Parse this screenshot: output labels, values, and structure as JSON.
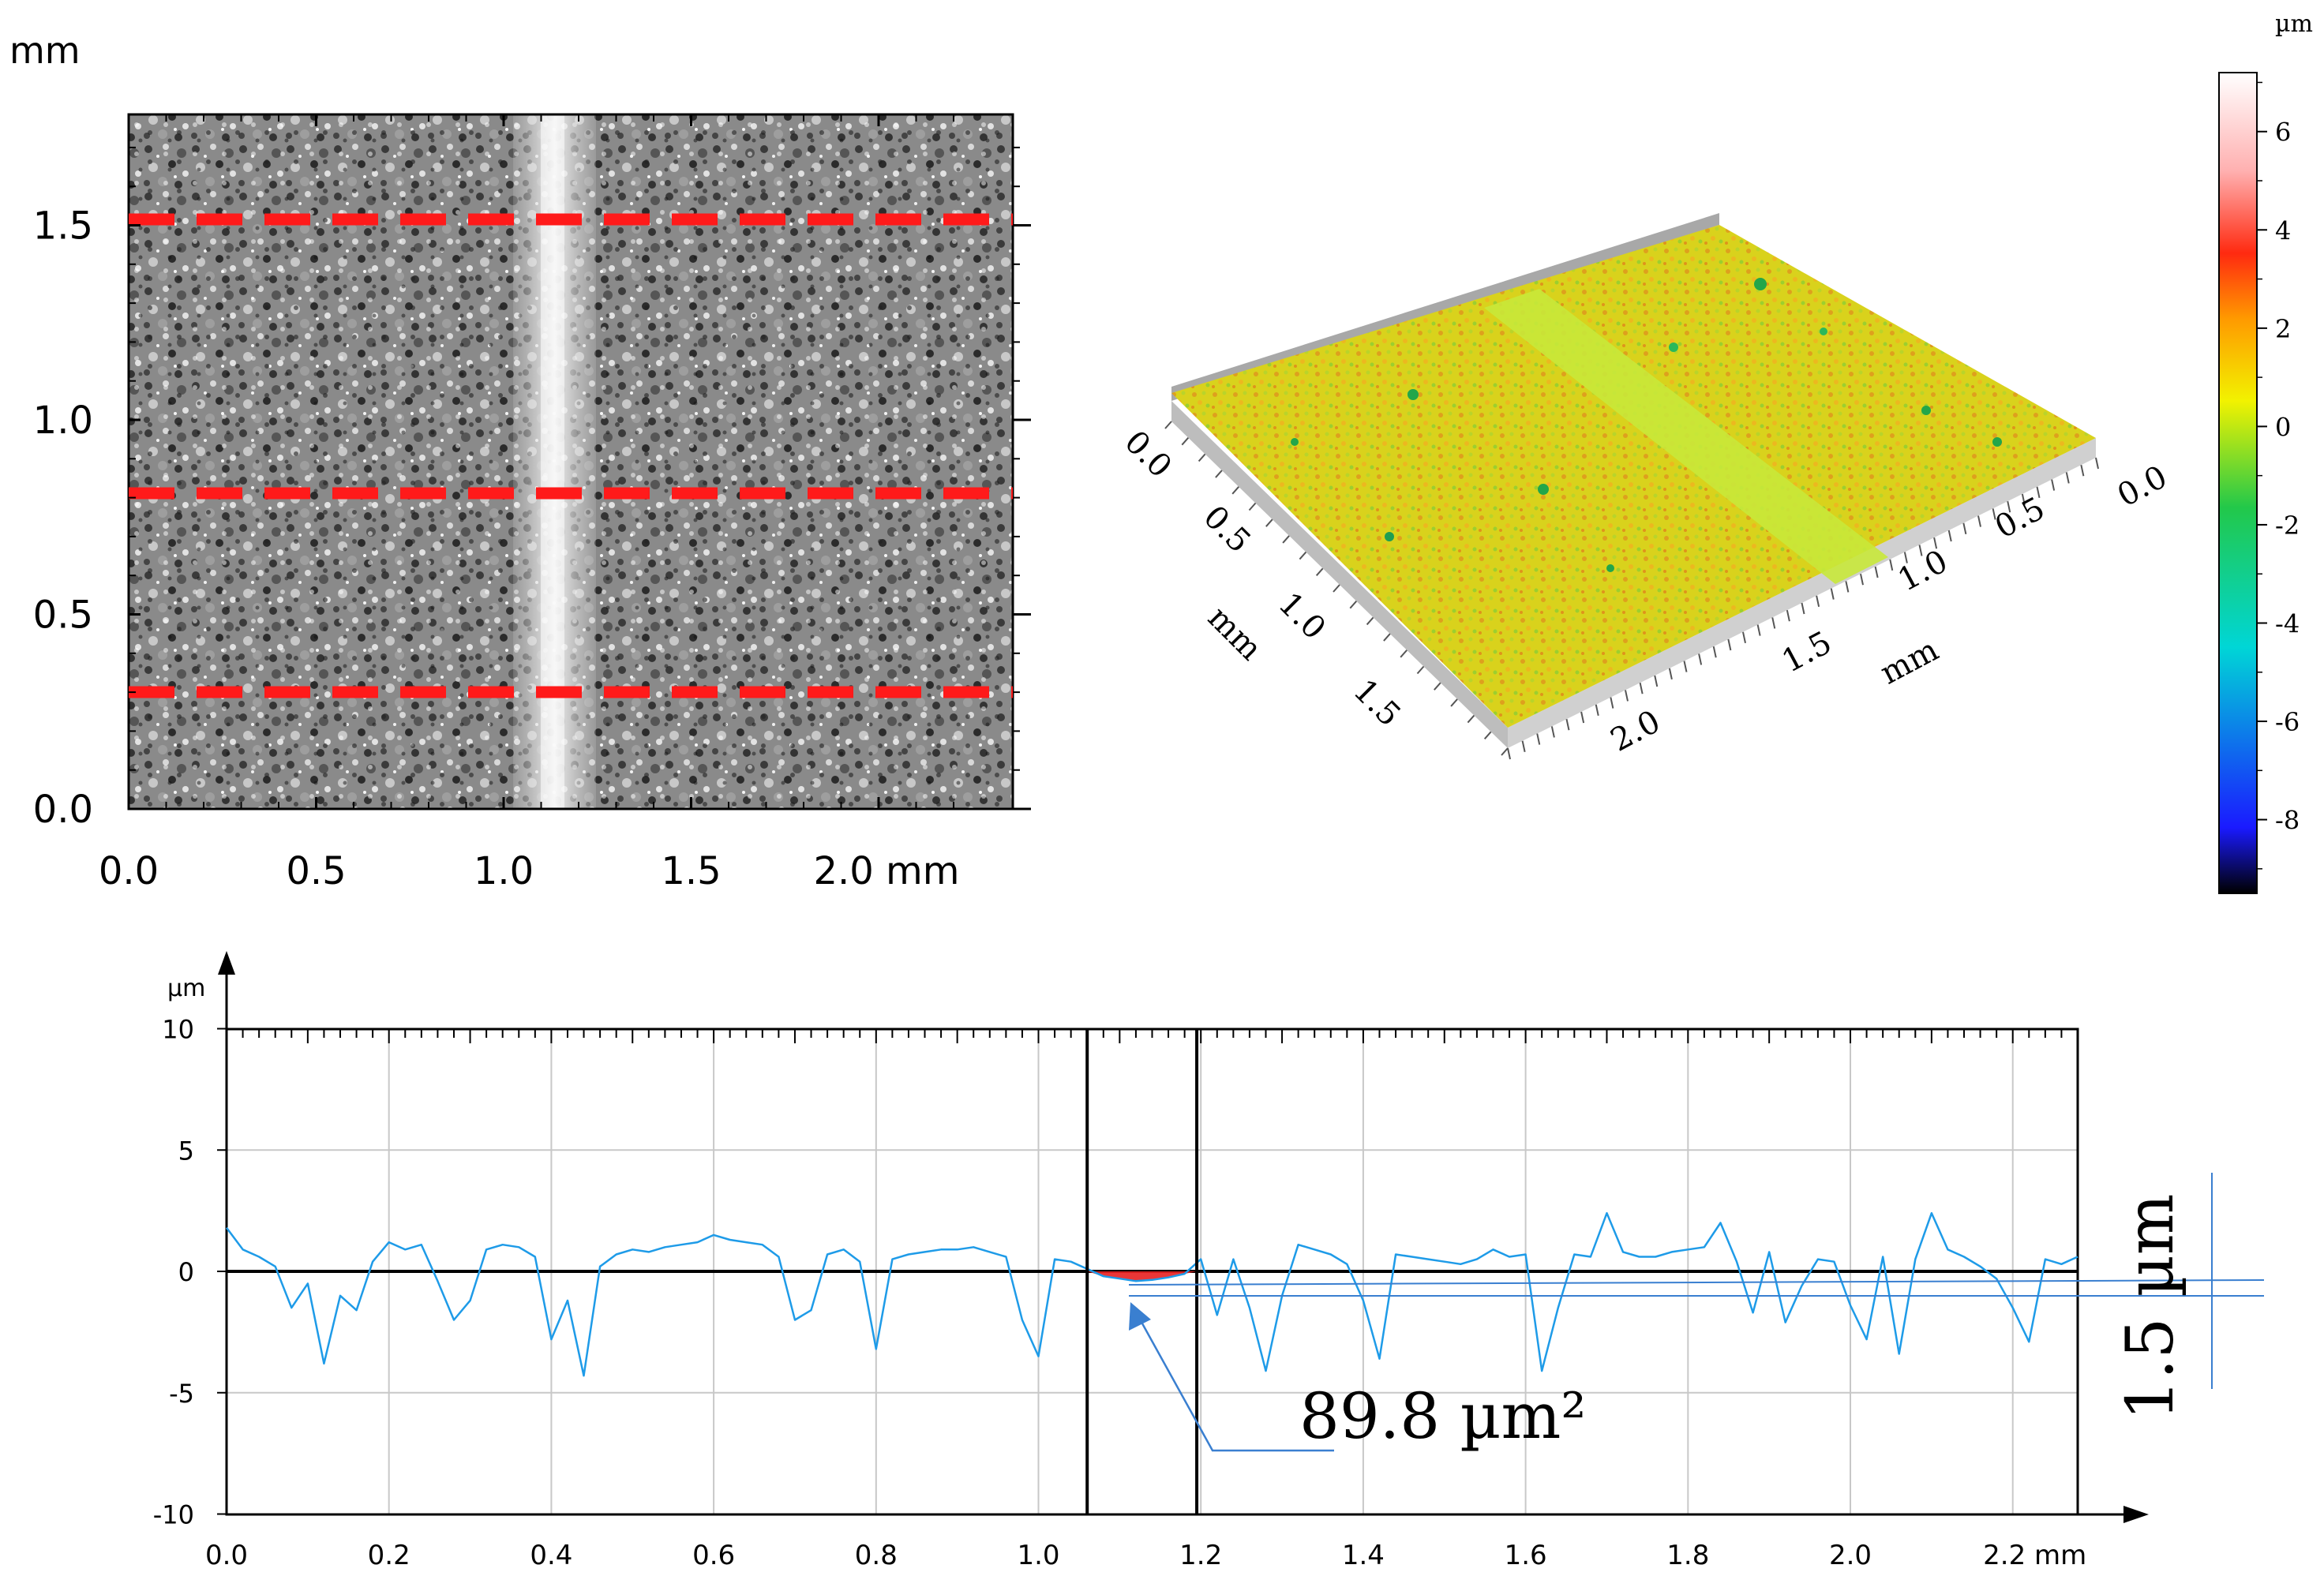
{
  "figure": {
    "panel_a": {
      "unit_label": "mm",
      "x_ticks": [
        "0.0",
        "0.5",
        "1.0",
        "1.5",
        "2.0 mm"
      ],
      "y_ticks": [
        "0.0",
        "0.5",
        "1.0",
        "1.5"
      ]
    },
    "panel_b": {
      "x_ticks": [
        "0.0",
        "0.5",
        "1.0",
        "1.5"
      ],
      "x_unit": "mm",
      "y_ticks": [
        "0.0",
        "0.5",
        "1.0",
        "1.5",
        "2.0"
      ],
      "y_unit": "mm",
      "colors": {
        "surface": "#d9d21c",
        "groove": "#c8e83a",
        "pit": "#22a64a",
        "base": "#bdbdbd"
      }
    },
    "colorbar": {
      "unit": "µm",
      "ticks": [
        "6",
        "4",
        "2",
        "0",
        "-2",
        "-4",
        "-6",
        "-8"
      ]
    },
    "colors": {
      "dash": "#ff1a1a",
      "profile": "#1e9be8",
      "annotation": "#3a7fd0"
    }
  },
  "chart_data": {
    "type": "line",
    "x_unit": "mm",
    "ylabel": "µm",
    "xlim": [
      0,
      2.28
    ],
    "ylim": [
      -10,
      10
    ],
    "x_ticks": [
      "0.0",
      "0.2",
      "0.4",
      "0.6",
      "0.8",
      "1.0",
      "1.2",
      "1.4",
      "1.6",
      "1.8",
      "2.0",
      "2.2 mm"
    ],
    "y_ticks": [
      "10",
      "5",
      "0",
      "-5",
      "-10"
    ],
    "grid": true,
    "markers_x": [
      1.06,
      1.195
    ],
    "profile": {
      "x": [
        0.0,
        0.02,
        0.04,
        0.06,
        0.08,
        0.1,
        0.12,
        0.14,
        0.16,
        0.18,
        0.2,
        0.22,
        0.24,
        0.26,
        0.28,
        0.3,
        0.32,
        0.34,
        0.36,
        0.38,
        0.4,
        0.42,
        0.44,
        0.46,
        0.48,
        0.5,
        0.52,
        0.54,
        0.56,
        0.58,
        0.6,
        0.62,
        0.64,
        0.66,
        0.68,
        0.7,
        0.72,
        0.74,
        0.76,
        0.78,
        0.8,
        0.82,
        0.84,
        0.86,
        0.88,
        0.9,
        0.92,
        0.94,
        0.96,
        0.98,
        1.0,
        1.02,
        1.04,
        1.06,
        1.08,
        1.1,
        1.12,
        1.14,
        1.16,
        1.18,
        1.2,
        1.22,
        1.24,
        1.26,
        1.28,
        1.3,
        1.32,
        1.34,
        1.36,
        1.38,
        1.4,
        1.42,
        1.44,
        1.46,
        1.48,
        1.5,
        1.52,
        1.54,
        1.56,
        1.58,
        1.6,
        1.62,
        1.64,
        1.66,
        1.68,
        1.7,
        1.72,
        1.74,
        1.76,
        1.78,
        1.8,
        1.82,
        1.84,
        1.86,
        1.88,
        1.9,
        1.92,
        1.94,
        1.96,
        1.98,
        2.0,
        2.02,
        2.04,
        2.06,
        2.08,
        2.1,
        2.12,
        2.14,
        2.16,
        2.18,
        2.2,
        2.22,
        2.24,
        2.26,
        2.28
      ],
      "y": [
        1.8,
        0.9,
        0.6,
        0.2,
        -1.5,
        -0.5,
        -3.8,
        -1.0,
        -1.6,
        0.4,
        1.2,
        0.9,
        1.1,
        -0.4,
        -2.0,
        -1.2,
        0.9,
        1.1,
        1.0,
        0.6,
        -2.8,
        -1.2,
        -4.3,
        0.2,
        0.7,
        0.9,
        0.8,
        1.0,
        1.1,
        1.2,
        1.5,
        1.3,
        1.2,
        1.1,
        0.6,
        -2.0,
        -1.6,
        0.7,
        0.9,
        0.4,
        -3.2,
        0.5,
        0.7,
        0.8,
        0.9,
        0.9,
        1.0,
        0.8,
        0.6,
        -2.0,
        -3.5,
        0.5,
        0.4,
        0.1,
        -0.2,
        -0.3,
        -0.4,
        -0.35,
        -0.25,
        -0.1,
        0.5,
        -1.8,
        0.5,
        -1.5,
        -4.1,
        -1.0,
        1.1,
        0.9,
        0.7,
        0.3,
        -1.2,
        -3.6,
        0.7,
        0.6,
        0.5,
        0.4,
        0.3,
        0.5,
        0.9,
        0.6,
        0.7,
        -4.1,
        -1.5,
        0.7,
        0.6,
        2.4,
        0.8,
        0.6,
        0.6,
        0.8,
        0.9,
        1.0,
        2.0,
        0.4,
        -1.7,
        0.8,
        -2.1,
        -0.6,
        0.5,
        0.4,
        -1.4,
        -2.8,
        0.6,
        -3.4,
        0.5,
        2.4,
        0.9,
        0.6,
        0.2,
        -0.3,
        -1.5,
        -2.9,
        0.5,
        0.3,
        0.6
      ]
    },
    "annotations": [
      {
        "text": "89.8 µm²",
        "type": "area"
      },
      {
        "text": "1.5 µm",
        "type": "depth"
      }
    ]
  }
}
